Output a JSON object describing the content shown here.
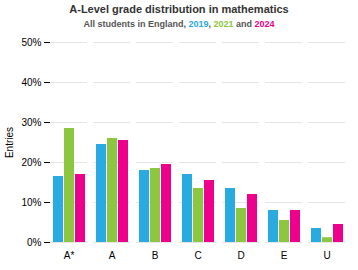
{
  "chart_data": {
    "type": "bar",
    "title": "A-Level grade distribution in mathematics",
    "subtitle": "All students in England, 2019, 2021 and 2024",
    "categories": [
      "A*",
      "A",
      "B",
      "C",
      "D",
      "E",
      "U"
    ],
    "series": [
      {
        "name": "2019",
        "color": "#29ABE2",
        "values": [
          16.5,
          24.5,
          18.0,
          17.0,
          13.5,
          8.0,
          3.5
        ]
      },
      {
        "name": "2021",
        "color": "#8DC63F",
        "values": [
          28.5,
          26.0,
          18.5,
          13.5,
          8.5,
          5.5,
          1.2
        ]
      },
      {
        "name": "2024",
        "color": "#EC008C",
        "values": [
          17.0,
          25.5,
          19.5,
          15.5,
          12.0,
          8.0,
          4.5
        ]
      }
    ],
    "ylabel": "Entries",
    "ylim": [
      0,
      50
    ],
    "yticks": [
      {
        "value": 0,
        "label": "0%"
      },
      {
        "value": 10,
        "label": "10%"
      },
      {
        "value": 20,
        "label": "20%"
      },
      {
        "value": 30,
        "label": "30%"
      },
      {
        "value": 40,
        "label": "40%"
      },
      {
        "value": 50,
        "label": "50%"
      }
    ],
    "grid": true
  }
}
